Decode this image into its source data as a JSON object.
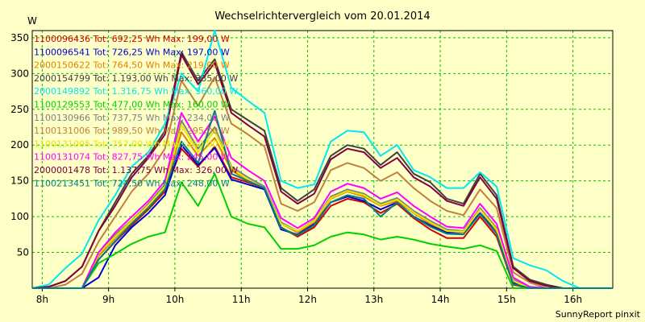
{
  "chart_data": {
    "type": "line",
    "title": "Wechselrichtervergleich vom 20.01.2014",
    "ylabel": "W",
    "ylim": [
      0,
      360
    ],
    "xlim": [
      7.85,
      16.6
    ],
    "yticks": [
      50,
      100,
      150,
      200,
      250,
      300,
      350
    ],
    "xticks": [
      {
        "value": 8,
        "label": "8h"
      },
      {
        "value": 9,
        "label": "9h"
      },
      {
        "value": 10,
        "label": "10h"
      },
      {
        "value": 11,
        "label": "11h"
      },
      {
        "value": 12,
        "label": "12h"
      },
      {
        "value": 13,
        "label": "13h"
      },
      {
        "value": 14,
        "label": "14h"
      },
      {
        "value": 15,
        "label": "15h"
      },
      {
        "value": 16,
        "label": "16h"
      }
    ],
    "grid": true,
    "legend_position": "top-left",
    "x": [
      7.85,
      8.1,
      8.35,
      8.6,
      8.85,
      9.1,
      9.35,
      9.6,
      9.85,
      10.1,
      10.35,
      10.6,
      10.85,
      11.1,
      11.35,
      11.6,
      11.85,
      12.1,
      12.35,
      12.6,
      12.85,
      13.1,
      13.35,
      13.6,
      13.85,
      14.1,
      14.35,
      14.6,
      14.85,
      15.1,
      15.35,
      15.6,
      15.85,
      16.1,
      16.35,
      16.6
    ],
    "series": [
      {
        "name": "1100096436 Tot: 692,25 Wh Max: 199,00 W",
        "color": "#d40000",
        "values": [
          0,
          0,
          0,
          0,
          40,
          65,
          88,
          110,
          135,
          195,
          170,
          198,
          155,
          148,
          140,
          85,
          72,
          85,
          115,
          125,
          120,
          105,
          118,
          98,
          82,
          70,
          70,
          100,
          72,
          5,
          0,
          0,
          0,
          0,
          0,
          0
        ]
      },
      {
        "name": "1100096541 Tot: 726,25 Wh Max: 197,00 W",
        "color": "#0000d0",
        "values": [
          0,
          0,
          0,
          0,
          15,
          60,
          85,
          105,
          130,
          200,
          172,
          196,
          152,
          145,
          138,
          82,
          75,
          90,
          120,
          128,
          122,
          110,
          120,
          100,
          88,
          78,
          78,
          105,
          78,
          8,
          0,
          0,
          0,
          0,
          0,
          0
        ]
      },
      {
        "name": "2000150622 Tot: 764,50 Wh Max: 219,00 W",
        "color": "#e08000",
        "values": [
          0,
          0,
          0,
          0,
          45,
          70,
          92,
          115,
          140,
          218,
          185,
          210,
          165,
          150,
          140,
          90,
          78,
          92,
          125,
          135,
          128,
          115,
          122,
          105,
          90,
          80,
          78,
          110,
          80,
          10,
          0,
          0,
          0,
          0,
          0,
          0
        ]
      },
      {
        "name": "2000154799 Tot: 1.193,00 Wh Max: 335,00 W",
        "color": "#404040",
        "values": [
          0,
          2,
          10,
          30,
          80,
          120,
          160,
          185,
          220,
          330,
          290,
          320,
          250,
          235,
          220,
          140,
          122,
          138,
          185,
          200,
          195,
          172,
          190,
          160,
          148,
          125,
          118,
          160,
          130,
          30,
          12,
          5,
          0,
          0,
          0,
          0
        ]
      },
      {
        "name": "2000149892 Tot: 1.316,75 Wh Max: 360,00 W",
        "color": "#00e8f0",
        "values": [
          0,
          5,
          28,
          48,
          95,
          130,
          170,
          190,
          230,
          300,
          275,
          360,
          280,
          262,
          245,
          150,
          140,
          145,
          205,
          220,
          218,
          185,
          200,
          165,
          155,
          140,
          140,
          162,
          142,
          42,
          32,
          25,
          10,
          0,
          0,
          0
        ]
      },
      {
        "name": "1100129553 Tot: 477,00 Wh Max: 160,00 W",
        "color": "#00d000",
        "values": [
          0,
          0,
          0,
          0,
          35,
          48,
          62,
          72,
          78,
          148,
          115,
          160,
          100,
          90,
          85,
          55,
          55,
          60,
          72,
          78,
          75,
          68,
          72,
          68,
          62,
          58,
          55,
          60,
          52,
          0,
          0,
          0,
          0,
          0,
          0,
          0
        ]
      },
      {
        "name": "1100130966 Tot: 737,75 Wh Max: 234,00 W",
        "color": "#808080",
        "values": [
          0,
          0,
          0,
          0,
          50,
          75,
          95,
          118,
          145,
          234,
          195,
          225,
          170,
          155,
          142,
          92,
          80,
          95,
          128,
          138,
          132,
          118,
          126,
          108,
          94,
          82,
          80,
          112,
          84,
          12,
          0,
          0,
          0,
          0,
          0,
          0
        ]
      },
      {
        "name": "1100131006 Tot: 989,50 Wh Max: 295,00 W",
        "color": "#c08040",
        "values": [
          0,
          0,
          5,
          20,
          65,
          100,
          135,
          160,
          195,
          290,
          255,
          295,
          230,
          215,
          198,
          118,
          108,
          120,
          165,
          175,
          168,
          150,
          162,
          140,
          122,
          108,
          102,
          138,
          112,
          22,
          8,
          0,
          0,
          0,
          0,
          0
        ]
      },
      {
        "name": "1100131005 Tot: 757,00 Wh Max: 230,00 W",
        "color": "#e8e800",
        "values": [
          0,
          0,
          0,
          0,
          48,
          72,
          94,
          116,
          142,
          228,
          190,
          220,
          168,
          152,
          140,
          90,
          80,
          94,
          126,
          136,
          130,
          116,
          124,
          106,
          92,
          80,
          79,
          110,
          82,
          10,
          0,
          0,
          0,
          0,
          0,
          0
        ]
      },
      {
        "name": "1100131074 Tot: 827,75 Wh Max: 245,00 W",
        "color": "#ff00ff",
        "values": [
          0,
          0,
          0,
          0,
          50,
          78,
          100,
          122,
          150,
          245,
          205,
          240,
          182,
          165,
          150,
          98,
          84,
          98,
          135,
          146,
          140,
          125,
          134,
          115,
          100,
          86,
          84,
          118,
          90,
          15,
          2,
          0,
          0,
          0,
          0,
          0
        ]
      },
      {
        "name": "2000001478 Tot: 1.137,75 Wh Max: 326,00 W",
        "color": "#800040",
        "values": [
          0,
          2,
          10,
          30,
          80,
          115,
          155,
          182,
          215,
          326,
          285,
          315,
          245,
          228,
          212,
          135,
          118,
          132,
          180,
          195,
          190,
          168,
          182,
          155,
          142,
          122,
          115,
          155,
          125,
          28,
          10,
          3,
          0,
          0,
          0,
          0
        ]
      },
      {
        "name": "1100213451 Tot: 724,50 Wh Max: 248,00 W",
        "color": "#008080",
        "values": [
          0,
          0,
          0,
          0,
          40,
          66,
          90,
          112,
          138,
          205,
          175,
          248,
          160,
          150,
          140,
          84,
          74,
          88,
          120,
          130,
          125,
          100,
          120,
          100,
          86,
          76,
          75,
          104,
          76,
          6,
          0,
          0,
          0,
          0,
          0,
          0
        ]
      }
    ]
  },
  "footer": "SunnyReport pinxit"
}
